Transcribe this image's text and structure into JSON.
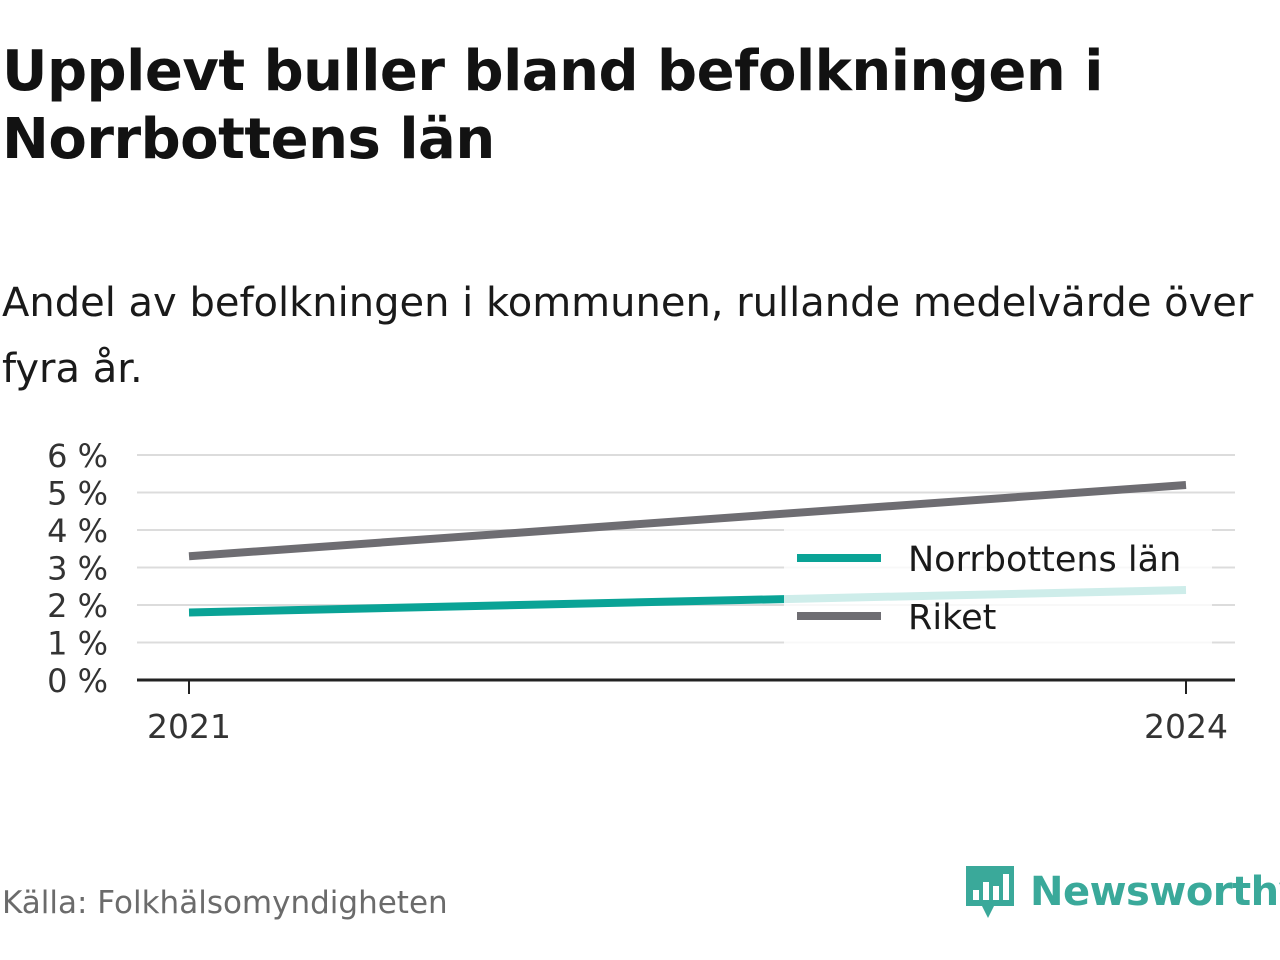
{
  "title": "Upplevt buller bland befolkningen i Norrbottens län",
  "subtitle": "Andel av befolkningen i kommunen, rullande medelvärde över fyra år.",
  "source": "Källa: Folkhälsomyndigheten",
  "brand": "Newsworthy",
  "colors": {
    "norrbotten": "#0aa396",
    "riket": "#6e6d72",
    "brand": "#3aa99a"
  },
  "chart_data": {
    "type": "line",
    "x": [
      2021,
      2024
    ],
    "x_tick_labels": [
      "2021",
      "2024"
    ],
    "ylim": [
      0,
      6
    ],
    "y_ticks": [
      0,
      1,
      2,
      3,
      4,
      5,
      6
    ],
    "y_tick_labels": [
      "0 %",
      "1 %",
      "2 %",
      "3 %",
      "4 %",
      "5 %",
      "6 %"
    ],
    "grid": true,
    "legend_position": "right",
    "series": [
      {
        "name": "Norrbottens län",
        "values": [
          1.8,
          2.4
        ],
        "color": "#0aa396"
      },
      {
        "name": "Riket",
        "values": [
          3.3,
          5.2
        ],
        "color": "#6e6d72"
      }
    ]
  }
}
